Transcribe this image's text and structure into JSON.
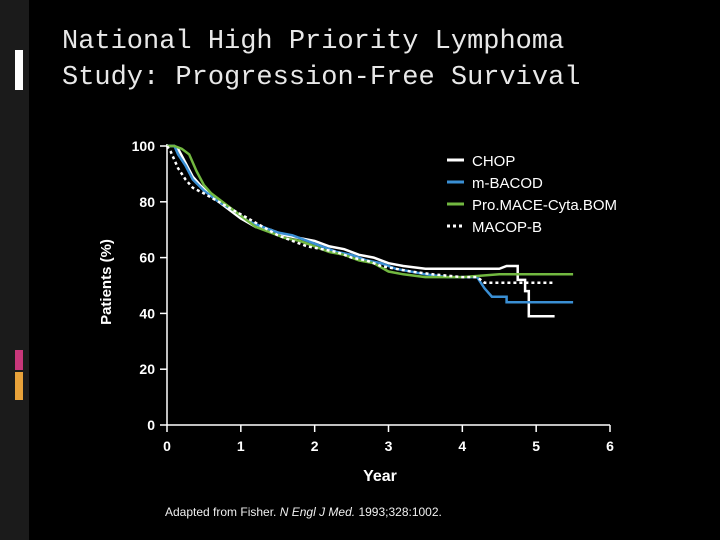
{
  "slide": {
    "title_line1": "National High Priority Lymphoma",
    "title_line2": "Study: Progression-Free Survival",
    "caption_prefix": "Adapted from Fisher. ",
    "caption_journal": "N Engl J Med.",
    "caption_suffix": " 1993;328:1002."
  },
  "colors": {
    "background": "#000000",
    "deco_white": "#ffffff",
    "deco_pink": "#c8377a",
    "deco_orange": "#e8a23a"
  },
  "chart_data": {
    "type": "line",
    "title": "",
    "xlabel": "Year",
    "ylabel": "Patients (%)",
    "xlim": [
      0,
      6
    ],
    "ylim": [
      0,
      100
    ],
    "xticks": [
      0,
      1,
      2,
      3,
      4,
      5,
      6
    ],
    "yticks": [
      0,
      20,
      40,
      60,
      80,
      100
    ],
    "grid": false,
    "legend_position": "top-right",
    "series": [
      {
        "name": "CHOP",
        "color": "#ffffff",
        "dash": "solid",
        "points": [
          [
            0,
            100
          ],
          [
            0.1,
            100
          ],
          [
            0.15,
            99
          ],
          [
            0.25,
            94
          ],
          [
            0.35,
            89
          ],
          [
            0.45,
            86
          ],
          [
            0.6,
            82
          ],
          [
            0.8,
            78
          ],
          [
            1.0,
            74
          ],
          [
            1.2,
            71
          ],
          [
            1.4,
            70
          ],
          [
            1.6,
            68
          ],
          [
            1.8,
            67
          ],
          [
            2.0,
            66
          ],
          [
            2.2,
            64
          ],
          [
            2.4,
            63
          ],
          [
            2.6,
            61
          ],
          [
            2.8,
            60
          ],
          [
            3.0,
            58
          ],
          [
            3.2,
            57
          ],
          [
            3.5,
            56
          ],
          [
            3.8,
            56
          ],
          [
            4.5,
            56
          ],
          [
            4.6,
            57
          ],
          [
            4.75,
            57
          ],
          [
            4.75,
            52
          ],
          [
            4.85,
            52
          ],
          [
            4.85,
            48
          ],
          [
            4.9,
            48
          ],
          [
            4.9,
            39
          ],
          [
            5.25,
            39
          ]
        ]
      },
      {
        "name": "m-BACOD",
        "color": "#3a8fd4",
        "dash": "solid",
        "points": [
          [
            0,
            100
          ],
          [
            0.1,
            100
          ],
          [
            0.15,
            97
          ],
          [
            0.25,
            93
          ],
          [
            0.35,
            88
          ],
          [
            0.5,
            84
          ],
          [
            0.7,
            80
          ],
          [
            0.9,
            77
          ],
          [
            1.1,
            73
          ],
          [
            1.3,
            71
          ],
          [
            1.5,
            69
          ],
          [
            1.7,
            68
          ],
          [
            1.9,
            66
          ],
          [
            2.1,
            64
          ],
          [
            2.3,
            62
          ],
          [
            2.5,
            61
          ],
          [
            2.7,
            59
          ],
          [
            2.9,
            58
          ],
          [
            3.1,
            56
          ],
          [
            3.3,
            55
          ],
          [
            3.5,
            54
          ],
          [
            3.8,
            53
          ],
          [
            4.2,
            53
          ],
          [
            4.3,
            49
          ],
          [
            4.4,
            46
          ],
          [
            4.6,
            46
          ],
          [
            4.6,
            44
          ],
          [
            5.5,
            44
          ]
        ]
      },
      {
        "name": "Pro.MACE-Cyta.BOM",
        "color": "#72b840",
        "dash": "solid",
        "points": [
          [
            0,
            100
          ],
          [
            0.1,
            100
          ],
          [
            0.2,
            99
          ],
          [
            0.3,
            97
          ],
          [
            0.4,
            91
          ],
          [
            0.5,
            86
          ],
          [
            0.6,
            83
          ],
          [
            0.8,
            79
          ],
          [
            1.0,
            75
          ],
          [
            1.2,
            71
          ],
          [
            1.4,
            69
          ],
          [
            1.6,
            67
          ],
          [
            1.8,
            66
          ],
          [
            2.0,
            64
          ],
          [
            2.2,
            62
          ],
          [
            2.4,
            61
          ],
          [
            2.6,
            59
          ],
          [
            2.8,
            58
          ],
          [
            3.0,
            55
          ],
          [
            3.2,
            54
          ],
          [
            3.5,
            53
          ],
          [
            4.0,
            53
          ],
          [
            4.5,
            54
          ],
          [
            5.0,
            54
          ],
          [
            5.5,
            54
          ]
        ]
      },
      {
        "name": "MACOP-B",
        "color": "#ffffff",
        "dash": "dotted",
        "points": [
          [
            0,
            100
          ],
          [
            0.05,
            98
          ],
          [
            0.15,
            92
          ],
          [
            0.25,
            88
          ],
          [
            0.35,
            85
          ],
          [
            0.5,
            83
          ],
          [
            0.7,
            80
          ],
          [
            0.9,
            77
          ],
          [
            1.1,
            74
          ],
          [
            1.3,
            71
          ],
          [
            1.5,
            68
          ],
          [
            1.7,
            66
          ],
          [
            1.9,
            64
          ],
          [
            2.1,
            63
          ],
          [
            2.3,
            62
          ],
          [
            2.5,
            60
          ],
          [
            2.7,
            59
          ],
          [
            2.9,
            57
          ],
          [
            3.1,
            56
          ],
          [
            3.3,
            55
          ],
          [
            3.6,
            54
          ],
          [
            4.0,
            53
          ],
          [
            4.2,
            53
          ],
          [
            4.3,
            51
          ],
          [
            5.25,
            51
          ]
        ]
      }
    ]
  }
}
